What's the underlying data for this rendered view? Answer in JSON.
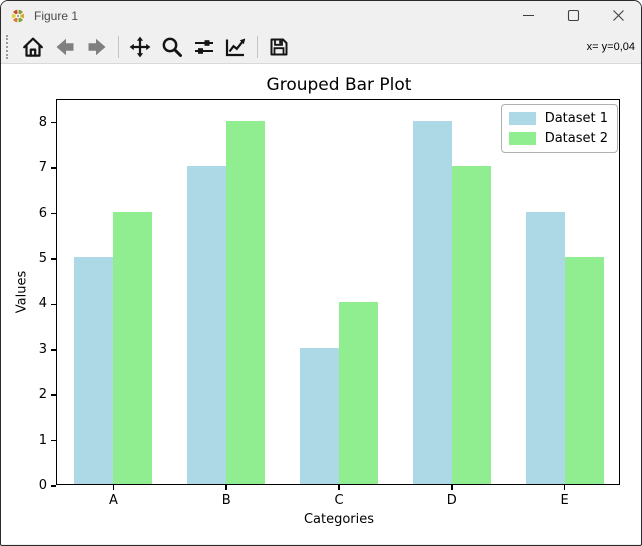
{
  "window": {
    "title": "Figure 1",
    "controls": {
      "minimize": "minimize",
      "maximize": "maximize",
      "close": "close"
    }
  },
  "toolbar": {
    "buttons": [
      {
        "name": "home",
        "icon": "home-icon",
        "enabled": true
      },
      {
        "name": "back",
        "icon": "back-arrow-icon",
        "enabled": false
      },
      {
        "name": "forward",
        "icon": "forward-arrow-icon",
        "enabled": false
      },
      {
        "name": "pan",
        "icon": "pan-arrows-icon",
        "enabled": true
      },
      {
        "name": "zoom",
        "icon": "magnifier-icon",
        "enabled": true
      },
      {
        "name": "configure-subplots",
        "icon": "sliders-icon",
        "enabled": true
      },
      {
        "name": "edit-axes",
        "icon": "line-chart-icon",
        "enabled": true
      },
      {
        "name": "save",
        "icon": "floppy-disk-icon",
        "enabled": true
      }
    ],
    "status": "x= y=0,04"
  },
  "chart_data": {
    "type": "bar",
    "title": "Grouped Bar Plot",
    "xlabel": "Categories",
    "ylabel": "Values",
    "categories": [
      "A",
      "B",
      "C",
      "D",
      "E"
    ],
    "series": [
      {
        "name": "Dataset 1",
        "color": "#ADD8E6",
        "values": [
          5,
          7,
          3,
          8,
          6
        ]
      },
      {
        "name": "Dataset 2",
        "color": "#90EE90",
        "values": [
          6,
          8,
          4,
          7,
          5
        ]
      }
    ],
    "ylim": [
      0,
      8.5
    ],
    "yticks": [
      0,
      1,
      2,
      3,
      4,
      5,
      6,
      7,
      8
    ],
    "bar_width_units": 0.35,
    "legend_position": "upper right",
    "grid": false
  }
}
